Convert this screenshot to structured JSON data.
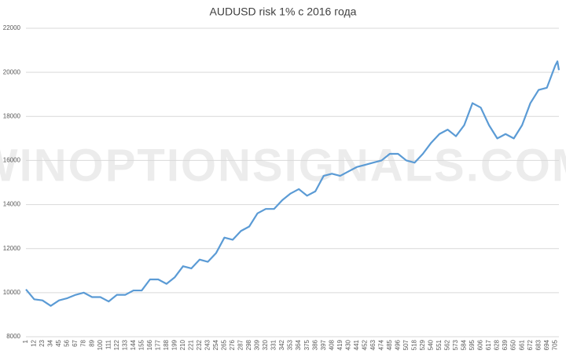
{
  "chart_data": {
    "type": "line",
    "title": "AUDUSD risk 1% с 2016 года",
    "watermark": "WINOPTIONSIGNALS.COM",
    "x": [
      1,
      12,
      23,
      34,
      45,
      56,
      67,
      78,
      89,
      100,
      111,
      122,
      133,
      144,
      155,
      166,
      177,
      188,
      199,
      210,
      221,
      232,
      243,
      254,
      265,
      276,
      287,
      298,
      309,
      320,
      331,
      342,
      353,
      364,
      375,
      386,
      397,
      408,
      419,
      430,
      441,
      452,
      463,
      474,
      485,
      496,
      507,
      518,
      529,
      540,
      551,
      562,
      573,
      584,
      595,
      606,
      617,
      628,
      639,
      650,
      661,
      672,
      683,
      694,
      705,
      708,
      710
    ],
    "series": [
      {
        "color": "#5b9bd5",
        "values": [
          10150,
          9700,
          9650,
          9400,
          9650,
          9750,
          9900,
          10000,
          9800,
          9800,
          9600,
          9900,
          9900,
          10100,
          10100,
          10600,
          10600,
          10400,
          10700,
          11200,
          11100,
          11500,
          11400,
          11800,
          12500,
          12400,
          12800,
          13000,
          13600,
          13800,
          13800,
          14200,
          14500,
          14700,
          14400,
          14600,
          15300,
          15400,
          15300,
          15500,
          15700,
          15800,
          15900,
          16000,
          16300,
          16300,
          16000,
          15900,
          16300,
          16800,
          17200,
          17400,
          17100,
          17600,
          18600,
          18400,
          17600,
          17000,
          17200,
          17000,
          17600,
          18600,
          19200,
          19300,
          20300,
          20500,
          20100
        ]
      }
    ],
    "xlim": [
      1,
      710
    ],
    "xticks": [
      1,
      12,
      23,
      34,
      45,
      56,
      67,
      78,
      89,
      100,
      111,
      122,
      133,
      144,
      155,
      166,
      177,
      188,
      199,
      210,
      221,
      232,
      243,
      254,
      265,
      276,
      287,
      298,
      309,
      320,
      331,
      342,
      353,
      364,
      375,
      386,
      397,
      408,
      419,
      430,
      441,
      452,
      463,
      474,
      485,
      496,
      507,
      518,
      529,
      540,
      551,
      562,
      573,
      584,
      595,
      606,
      617,
      628,
      639,
      650,
      661,
      672,
      683,
      694,
      705
    ],
    "ylim": [
      8000,
      22000
    ],
    "yticks": [
      8000,
      10000,
      12000,
      14000,
      16000,
      18000,
      20000,
      22000
    ],
    "grid": true
  }
}
